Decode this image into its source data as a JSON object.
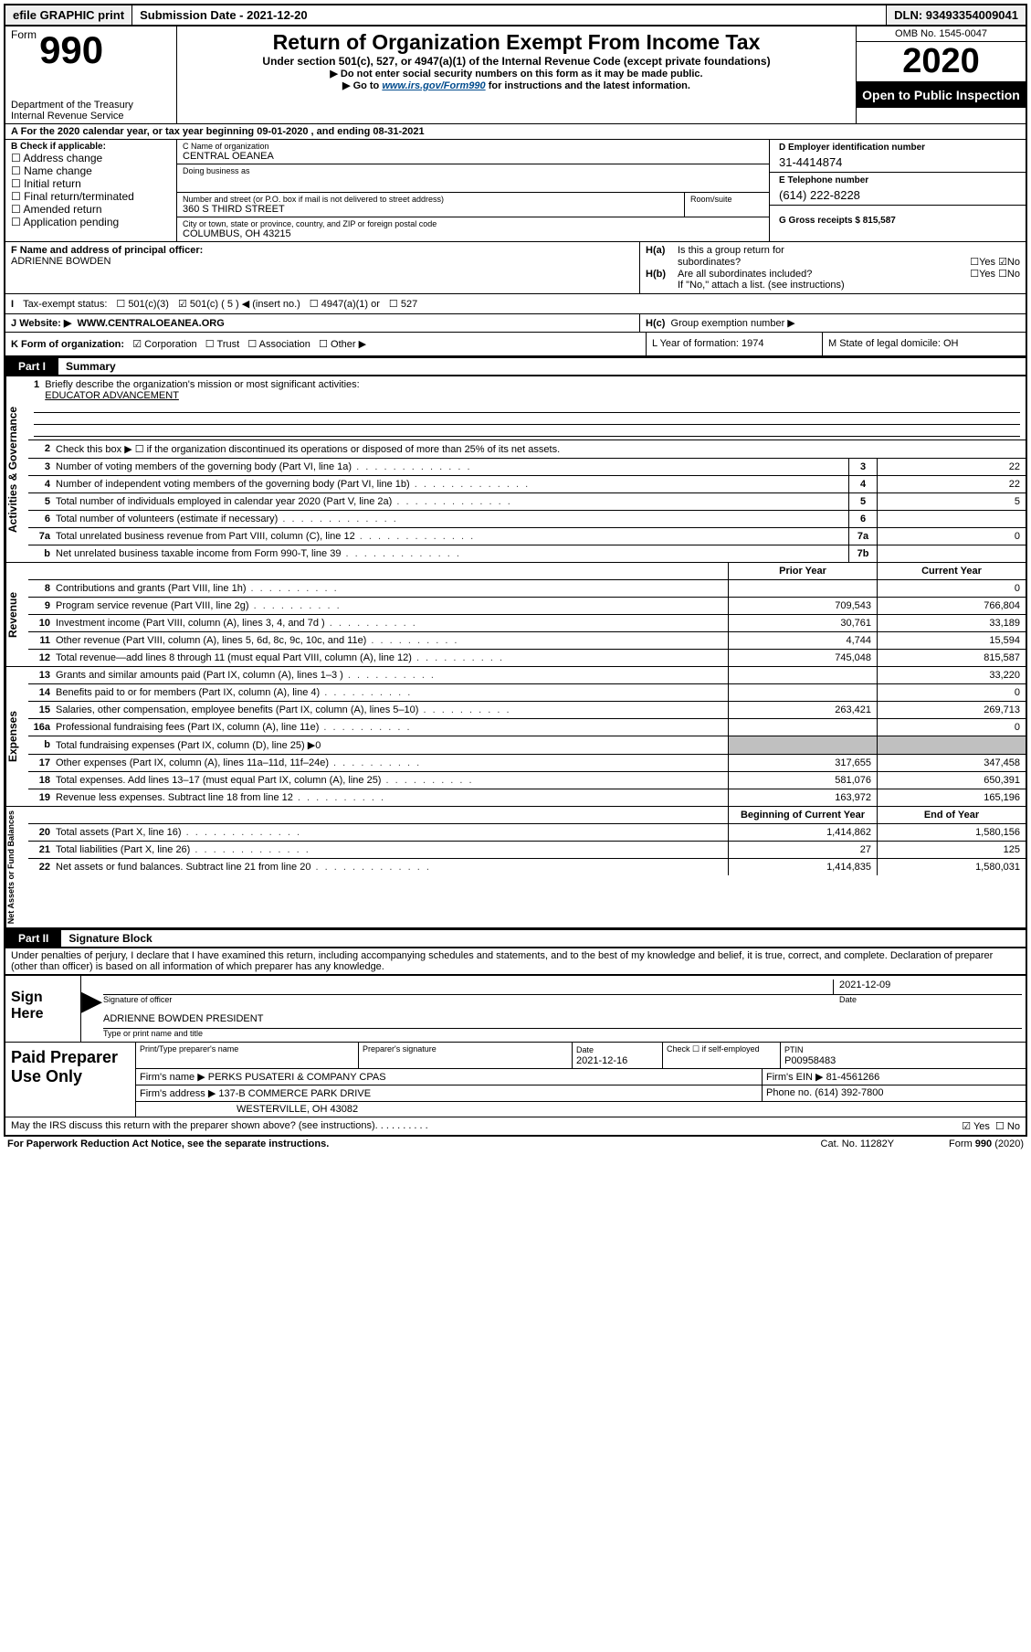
{
  "top": {
    "efile": "efile GRAPHIC print",
    "submission": "Submission Date - 2021-12-20",
    "dln": "DLN: 93493354009041"
  },
  "header": {
    "form_small": "Form",
    "form_num": "990",
    "dept": "Department of the Treasury",
    "irs": "Internal Revenue Service",
    "title": "Return of Organization Exempt From Income Tax",
    "sub1": "Under section 501(c), 527, or 4947(a)(1) of the Internal Revenue Code (except private foundations)",
    "sub2": "▶ Do not enter social security numbers on this form as it may be made public.",
    "sub3_pre": "▶ Go to ",
    "sub3_link": "www.irs.gov/Form990",
    "sub3_post": " for instructions and the latest information.",
    "omb": "OMB No. 1545-0047",
    "year": "2020",
    "open": "Open to Public Inspection"
  },
  "ty": "For the 2020 calendar year, or tax year beginning 09-01-2020   , and ending 08-31-2021",
  "b": {
    "title": "B Check if applicable:",
    "items": [
      "Address change",
      "Name change",
      "Initial return",
      "Final return/terminated",
      "Amended return",
      "Application pending"
    ],
    "c_lbl": "C Name of organization",
    "c_val": "CENTRAL OEANEA",
    "dba_lbl": "Doing business as",
    "street_lbl": "Number and street (or P.O. box if mail is not delivered to street address)",
    "room_lbl": "Room/suite",
    "street_val": "360 S THIRD STREET",
    "city_lbl": "City or town, state or province, country, and ZIP or foreign postal code",
    "city_val": "COLUMBUS, OH  43215",
    "d_lbl": "D Employer identification number",
    "d_val": "31-4414874",
    "e_lbl": "E Telephone number",
    "e_val": "(614) 222-8228",
    "g_lbl": "G Gross receipts $ 815,587"
  },
  "f": {
    "lbl": "F  Name and address of principal officer:",
    "val": "ADRIENNE BOWDEN",
    "ha": "Is this a group return for",
    "ha2": "subordinates?",
    "hb": "Are all subordinates included?",
    "hb2": "If \"No,\" attach a list. (see instructions)",
    "hc": "Group exemption number ▶"
  },
  "tax": {
    "label": "Tax-exempt status:",
    "o1": "501(c)(3)",
    "o2": "501(c) ( 5 ) ◀ (insert no.)",
    "o3": "4947(a)(1) or",
    "o4": "527"
  },
  "website": {
    "label": "Website: ▶",
    "val": "WWW.CENTRALOEANEA.ORG",
    "hc": "H(c)"
  },
  "k": {
    "label": "K Form of organization:",
    "opts": [
      "Corporation",
      "Trust",
      "Association",
      "Other ▶"
    ],
    "l": "L Year of formation: 1974",
    "m": "M State of legal domicile: OH"
  },
  "part1": {
    "tag": "Part I",
    "title": "Summary",
    "q1": "Briefly describe the organization's mission or most significant activities:",
    "q1val": "EDUCATOR ADVANCEMENT",
    "q2": "Check this box ▶ ☐  if the organization discontinued its operations or disposed of more than 25% of its net assets.",
    "rows_ag": [
      {
        "n": "3",
        "d": "Number of voting members of the governing body (Part VI, line 1a)",
        "box": "3",
        "v": "22"
      },
      {
        "n": "4",
        "d": "Number of independent voting members of the governing body (Part VI, line 1b)",
        "box": "4",
        "v": "22"
      },
      {
        "n": "5",
        "d": "Total number of individuals employed in calendar year 2020 (Part V, line 2a)",
        "box": "5",
        "v": "5"
      },
      {
        "n": "6",
        "d": "Total number of volunteers (estimate if necessary)",
        "box": "6",
        "v": ""
      },
      {
        "n": "7a",
        "d": "Total unrelated business revenue from Part VIII, column (C), line 12",
        "box": "7a",
        "v": "0"
      },
      {
        "n": "b",
        "d": "Net unrelated business taxable income from Form 990-T, line 39",
        "box": "7b",
        "v": ""
      }
    ],
    "py": "Prior Year",
    "cy": "Current Year",
    "rows_rev": [
      {
        "n": "8",
        "d": "Contributions and grants (Part VIII, line 1h)",
        "v1": "",
        "v2": "0"
      },
      {
        "n": "9",
        "d": "Program service revenue (Part VIII, line 2g)",
        "v1": "709,543",
        "v2": "766,804"
      },
      {
        "n": "10",
        "d": "Investment income (Part VIII, column (A), lines 3, 4, and 7d )",
        "v1": "30,761",
        "v2": "33,189"
      },
      {
        "n": "11",
        "d": "Other revenue (Part VIII, column (A), lines 5, 6d, 8c, 9c, 10c, and 11e)",
        "v1": "4,744",
        "v2": "15,594"
      },
      {
        "n": "12",
        "d": "Total revenue—add lines 8 through 11 (must equal Part VIII, column (A), line 12)",
        "v1": "745,048",
        "v2": "815,587"
      }
    ],
    "rows_exp": [
      {
        "n": "13",
        "d": "Grants and similar amounts paid (Part IX, column (A), lines 1–3 )",
        "v1": "",
        "v2": "33,220"
      },
      {
        "n": "14",
        "d": "Benefits paid to or for members (Part IX, column (A), line 4)",
        "v1": "",
        "v2": "0"
      },
      {
        "n": "15",
        "d": "Salaries, other compensation, employee benefits (Part IX, column (A), lines 5–10)",
        "v1": "263,421",
        "v2": "269,713"
      },
      {
        "n": "16a",
        "d": "Professional fundraising fees (Part IX, column (A), line 11e)",
        "v1": "",
        "v2": "0"
      },
      {
        "n": "b",
        "d": "Total fundraising expenses (Part IX, column (D), line 25) ▶0",
        "grey": true
      },
      {
        "n": "17",
        "d": "Other expenses (Part IX, column (A), lines 11a–11d, 11f–24e)",
        "v1": "317,655",
        "v2": "347,458"
      },
      {
        "n": "18",
        "d": "Total expenses. Add lines 13–17 (must equal Part IX, column (A), line 25)",
        "v1": "581,076",
        "v2": "650,391"
      },
      {
        "n": "19",
        "d": "Revenue less expenses. Subtract line 18 from line 12",
        "v1": "163,972",
        "v2": "165,196"
      }
    ],
    "bcy": "Beginning of Current Year",
    "ey": "End of Year",
    "rows_net": [
      {
        "n": "20",
        "d": "Total assets (Part X, line 16)",
        "v1": "1,414,862",
        "v2": "1,580,156"
      },
      {
        "n": "21",
        "d": "Total liabilities (Part X, line 26)",
        "v1": "27",
        "v2": "125"
      },
      {
        "n": "22",
        "d": "Net assets or fund balances. Subtract line 21 from line 20",
        "v1": "1,414,835",
        "v2": "1,580,031"
      }
    ],
    "side_ag": "Activities & Governance",
    "side_rev": "Revenue",
    "side_exp": "Expenses",
    "side_net": "Net Assets or Fund Balances"
  },
  "part2": {
    "tag": "Part II",
    "title": "Signature Block",
    "decl": "Under penalties of perjury, I declare that I have examined this return, including accompanying schedules and statements, and to the best of my knowledge and belief, it is true, correct, and complete. Declaration of preparer (other than officer) is based on all information of which preparer has any knowledge."
  },
  "sign": {
    "here": "Sign Here",
    "sig_lbl": "Signature of officer",
    "date": "2021-12-09",
    "date_lbl": "Date",
    "name": "ADRIENNE BOWDEN  PRESIDENT",
    "name_lbl": "Type or print name and title"
  },
  "prep": {
    "title": "Paid Preparer Use Only",
    "h1": "Print/Type preparer's name",
    "h2": "Preparer's signature",
    "h3": "Date",
    "h3v": "2021-12-16",
    "h4": "Check ☐ if self-employed",
    "h5": "PTIN",
    "h5v": "P00958483",
    "firm_lbl": "Firm's name    ▶",
    "firm": "PERKS PUSATERI & COMPANY CPAS",
    "ein_lbl": "Firm's EIN ▶",
    "ein": "81-4561266",
    "addr_lbl": "Firm's address ▶",
    "addr1": "137-B COMMERCE PARK DRIVE",
    "addr2": "WESTERVILLE, OH  43082",
    "phone_lbl": "Phone no.",
    "phone": "(614) 392-7800"
  },
  "footer": {
    "q": "May the IRS discuss this return with the preparer shown above? (see instructions)",
    "paperwork": "For Paperwork Reduction Act Notice, see the separate instructions.",
    "cat": "Cat. No. 11282Y",
    "form": "Form 990 (2020)"
  }
}
